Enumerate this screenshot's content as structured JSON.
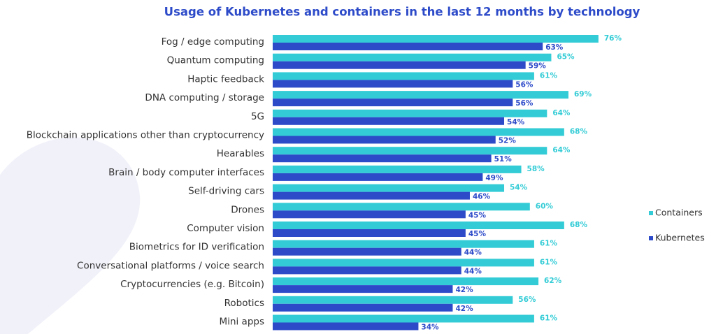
{
  "chart_data": {
    "type": "bar",
    "orientation": "horizontal",
    "title": "Usage of Kubernetes and containers in the last 12 months by technology",
    "categories": [
      "Fog / edge computing",
      "Quantum computing",
      "Haptic feedback",
      "DNA computing / storage",
      "5G",
      "Blockchain applications other than cryptocurrency",
      "Hearables",
      "Brain / body computer interfaces",
      "Self-driving cars",
      "Drones",
      "Computer vision",
      "Biometrics for ID verification",
      "Conversational platforms / voice search",
      "Cryptocurrencies (e.g. Bitcoin)",
      "Robotics",
      "Mini apps"
    ],
    "series": [
      {
        "name": "Containers",
        "color": "#33ccd6",
        "values": [
          76,
          65,
          61,
          69,
          64,
          68,
          64,
          58,
          54,
          60,
          68,
          61,
          61,
          62,
          56,
          61
        ],
        "value_labels": [
          "76%",
          "65%",
          "61%",
          "69%",
          "64%",
          "68%",
          "64%",
          "58%",
          "54%",
          "60%",
          "68%",
          "61%",
          "61%",
          "62%",
          "56%",
          "61%"
        ]
      },
      {
        "name": "Kubernetes",
        "color": "#2d4bc9",
        "values": [
          63,
          59,
          56,
          56,
          54,
          52,
          51,
          49,
          46,
          45,
          45,
          44,
          44,
          42,
          42,
          34
        ],
        "value_labels": [
          "63%",
          "59%",
          "56%",
          "56%",
          "54%",
          "52%",
          "51%",
          "49%",
          "46%",
          "45%",
          "45%",
          "44%",
          "44%",
          "42%",
          "42%",
          "34%"
        ]
      }
    ],
    "legend": "right"
  }
}
